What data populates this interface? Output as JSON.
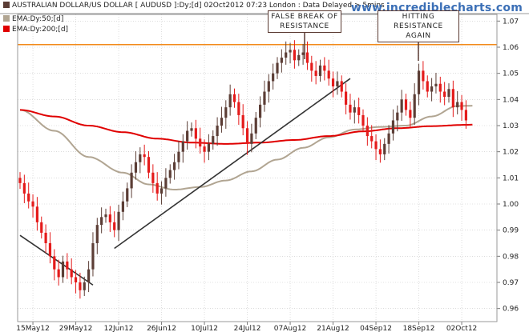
{
  "header": {
    "title": "AUSTRALIAN DOLLAR/US DOLLAR [ AUDUSD ]:Dy;[d]  02Oct2012 07:23 London : Data Delayed > 5mins",
    "legend": [
      {
        "label": "EMA:Dy:50;[d]",
        "color": "#b1a592"
      },
      {
        "label": "EMA:Dy:200;[d]",
        "color": "#e00000"
      }
    ],
    "site": "www.incrediblecharts.com"
  },
  "annotations": [
    {
      "lines": [
        "FALSE BREAK OF",
        "RESISTANCE"
      ]
    },
    {
      "lines": [
        "HITTING",
        "RESISTANCE AGAIN"
      ]
    }
  ],
  "chart_data": {
    "type": "candlestick",
    "title": "AUSTRALIAN DOLLAR/US DOLLAR [ AUDUSD ]:Dy;[d]  02Oct2012 07:23 London : Data Delayed > 5mins",
    "ylim": [
      0.955,
      1.075
    ],
    "y_ticks": [
      0.96,
      0.97,
      0.98,
      0.99,
      1.0,
      1.01,
      1.02,
      1.03,
      1.04,
      1.05,
      1.06,
      1.07
    ],
    "y_tick_labels": [
      "0.96",
      "0.97",
      "0.98",
      "0.99",
      "1.00",
      "1.01",
      "1.02",
      "1.03",
      "1.04",
      "1.05",
      "1.06",
      "1.07"
    ],
    "x_ticks": [
      {
        "label": "15May12",
        "index": 3
      },
      {
        "label": "29May12",
        "index": 13
      },
      {
        "label": "12Jun12",
        "index": 23
      },
      {
        "label": "26Jun12",
        "index": 33
      },
      {
        "label": "10Jul12",
        "index": 43
      },
      {
        "label": "24Jul12",
        "index": 53
      },
      {
        "label": "07Aug12",
        "index": 63
      },
      {
        "label": "21Aug12",
        "index": 73
      },
      {
        "label": "04Sep12",
        "index": 83
      },
      {
        "label": "18Sep12",
        "index": 93
      },
      {
        "label": "02Oct12",
        "index": 103
      }
    ],
    "closes": [
      1.008,
      1.004,
      1.001,
      0.999,
      0.993,
      0.989,
      0.985,
      0.98,
      0.975,
      0.972,
      0.978,
      0.975,
      0.972,
      0.97,
      0.967,
      0.97,
      0.975,
      0.985,
      0.992,
      0.995,
      0.996,
      0.993,
      0.99,
      0.997,
      1.001,
      1.006,
      1.012,
      1.016,
      1.019,
      1.018,
      1.012,
      1.008,
      1.004,
      1.006,
      1.01,
      1.013,
      1.016,
      1.02,
      1.024,
      1.028,
      1.029,
      1.025,
      1.022,
      1.02,
      1.023,
      1.026,
      1.03,
      1.033,
      1.037,
      1.042,
      1.039,
      1.034,
      1.029,
      1.023,
      1.027,
      1.033,
      1.038,
      1.043,
      1.047,
      1.05,
      1.054,
      1.056,
      1.058,
      1.059,
      1.055,
      1.057,
      1.058,
      1.054,
      1.051,
      1.049,
      1.053,
      1.051,
      1.048,
      1.045,
      1.047,
      1.043,
      1.038,
      1.035,
      1.037,
      1.034,
      1.03,
      1.026,
      1.024,
      1.021,
      1.019,
      1.023,
      1.027,
      1.032,
      1.035,
      1.04,
      1.036,
      1.033,
      1.042,
      1.051,
      1.047,
      1.043,
      1.045,
      1.046,
      1.043,
      1.041,
      1.044,
      1.037,
      1.039,
      1.036,
      1.032
    ],
    "resistance": 1.061,
    "series": [
      {
        "name": "EMA:Dy:50;[d]",
        "color": "#b1a592",
        "values": [
          [
            0,
            1.036
          ],
          [
            8,
            1.028
          ],
          [
            16,
            1.018
          ],
          [
            24,
            1.012
          ],
          [
            30,
            1.0075
          ],
          [
            36,
            1.0055
          ],
          [
            42,
            1.0065
          ],
          [
            48,
            1.009
          ],
          [
            54,
            1.0125
          ],
          [
            60,
            1.017
          ],
          [
            66,
            1.0215
          ],
          [
            72,
            1.0255
          ],
          [
            78,
            1.0285
          ],
          [
            84,
            1.0295
          ],
          [
            90,
            1.03
          ],
          [
            96,
            1.0335
          ],
          [
            102,
            1.0375
          ],
          [
            112,
            1.038
          ]
        ]
      },
      {
        "name": "EMA:Dy:200;[d]",
        "color": "#e00000",
        "values": [
          [
            0,
            1.036
          ],
          [
            8,
            1.0335
          ],
          [
            16,
            1.03
          ],
          [
            24,
            1.0275
          ],
          [
            32,
            1.025
          ],
          [
            40,
            1.0235
          ],
          [
            48,
            1.023
          ],
          [
            56,
            1.0235
          ],
          [
            64,
            1.0245
          ],
          [
            72,
            1.026
          ],
          [
            80,
            1.0278
          ],
          [
            88,
            1.029
          ],
          [
            96,
            1.0298
          ],
          [
            104,
            1.0303
          ],
          [
            112,
            1.031
          ]
        ]
      }
    ],
    "trendlines": [
      {
        "color": "#333333",
        "points": [
          [
            0,
            0.988
          ],
          [
            17,
            0.969
          ]
        ]
      },
      {
        "color": "#333333",
        "points": [
          [
            22,
            0.983
          ],
          [
            77,
            1.048
          ]
        ]
      }
    ],
    "colors": {
      "up": "#5c3e36",
      "down": "#e41b1b",
      "resistance": "#f28a1a",
      "grid": "#c8c8c8"
    }
  }
}
